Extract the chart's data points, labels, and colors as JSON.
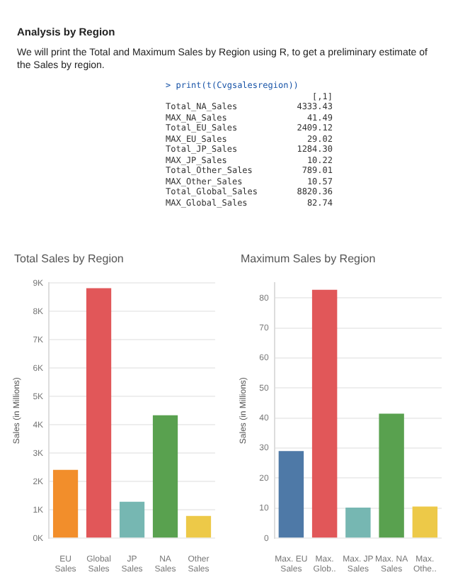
{
  "chart_data": [
    {
      "type": "bar",
      "title": "Total Sales by Region",
      "ylabel": "Sales (in Millions)",
      "categories": [
        "EU Sales",
        "Global Sales",
        "JP Sales",
        "NA Sales",
        "Other Sales"
      ],
      "values": [
        2409.12,
        8820.36,
        1284.3,
        4333.43,
        789.01
      ],
      "colors": [
        "#f28e2b",
        "#e15759",
        "#76b7b2",
        "#59a14f",
        "#edc948"
      ],
      "ylim": [
        0,
        9000
      ],
      "yticks": [
        {
          "value": 0,
          "label": "0K"
        },
        {
          "value": 1000,
          "label": "1K"
        },
        {
          "value": 2000,
          "label": "2K"
        },
        {
          "value": 3000,
          "label": "3K"
        },
        {
          "value": 4000,
          "label": "4K"
        },
        {
          "value": 5000,
          "label": "5K"
        },
        {
          "value": 6000,
          "label": "6K"
        },
        {
          "value": 7000,
          "label": "7K"
        },
        {
          "value": 8000,
          "label": "8K"
        },
        {
          "value": 9000,
          "label": "9K"
        }
      ],
      "grid": "y",
      "annotations": [
        "Analysis by Region",
        "We will print the Total and Maximum Sales by Region using R, to get a preliminary estimate of the Sales by region.",
        "> print(t(Cvgsalesregion))",
        "[,1]",
        "Total_NA_Sales 4333.43",
        "MAX_NA_Sales 41.49",
        "Total_EU_Sales 2409.12",
        "MAX_EU_Sales 29.02",
        "Total_JP_Sales 1284.30",
        "MAX_JP_Sales 10.22",
        "Total_Other_Sales 789.01",
        "MAX_Other_Sales 10.57",
        "Total_Global_Sales 8820.36",
        "MAX_Global_Sales 82.74"
      ]
    },
    {
      "type": "bar",
      "title": "Maximum Sales by Region",
      "ylabel": "Sales (in Millions)",
      "categories": [
        "Max. EU Sales",
        "Max. Glob..",
        "Max. JP Sales",
        "Max. NA Sales",
        "Max. Othe.."
      ],
      "values": [
        29.02,
        82.74,
        10.22,
        41.49,
        10.57
      ],
      "colors": [
        "#4e79a7",
        "#e15759",
        "#76b7b2",
        "#59a14f",
        "#edc948"
      ],
      "ylim": [
        0,
        85
      ],
      "yticks": [
        0,
        10,
        20,
        30,
        40,
        50,
        60,
        70,
        80
      ],
      "grid": "y"
    }
  ]
}
